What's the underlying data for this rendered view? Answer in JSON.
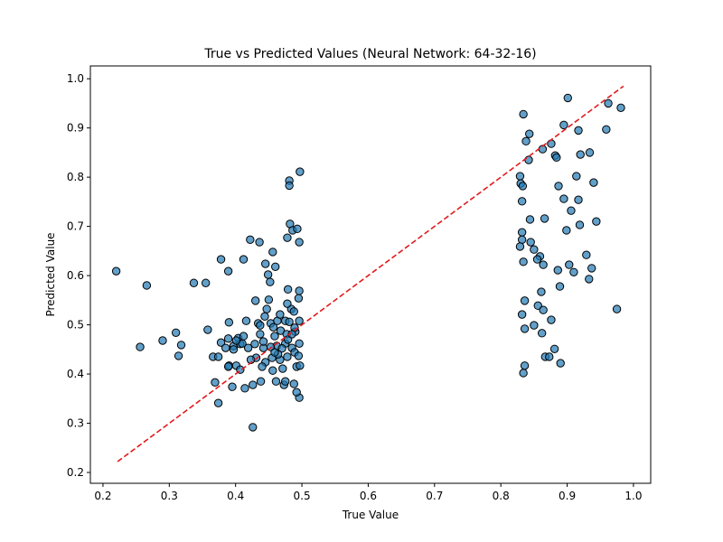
{
  "chart_data": {
    "type": "scatter",
    "title": "True vs Predicted Values (Neural Network: 64-32-16)",
    "xlabel": "True Value",
    "ylabel": "Predicted Value",
    "point_color": "#1f77b4",
    "x": [
      0.22,
      0.256,
      0.266,
      0.29,
      0.31,
      0.314,
      0.318,
      0.337,
      0.355,
      0.358,
      0.366,
      0.369,
      0.374,
      0.378,
      0.378,
      0.389,
      0.39,
      0.39,
      0.395,
      0.397,
      0.401,
      0.404,
      0.407,
      0.412,
      0.412,
      0.414,
      0.416,
      0.419,
      0.422,
      0.426,
      0.426,
      0.43,
      0.431,
      0.436,
      0.434,
      0.437,
      0.438,
      0.442,
      0.445,
      0.447,
      0.449,
      0.45,
      0.452,
      0.453,
      0.455,
      0.456,
      0.456,
      0.459,
      0.46,
      0.461,
      0.462,
      0.463,
      0.467,
      0.468,
      0.471,
      0.473,
      0.475,
      0.477,
      0.478,
      0.479,
      0.481,
      0.481,
      0.482,
      0.484,
      0.485,
      0.486,
      0.488,
      0.489,
      0.49,
      0.492,
      0.493,
      0.495,
      0.496,
      0.497,
      0.496,
      0.496,
      0.492,
      0.496,
      0.496,
      0.497,
      0.488,
      0.475,
      0.457,
      0.444,
      0.437,
      0.467,
      0.478,
      0.475,
      0.481,
      0.489,
      0.495,
      0.445,
      0.44,
      0.423,
      0.453,
      0.47,
      0.464,
      0.459,
      0.478,
      0.479,
      0.485,
      0.442,
      0.429,
      0.407,
      0.41,
      0.401,
      0.397,
      0.385,
      0.389,
      0.374,
      0.389,
      0.834,
      0.843,
      0.838,
      0.901,
      0.962,
      0.981,
      0.895,
      0.917,
      0.959,
      0.876,
      0.863,
      0.882,
      0.884,
      0.92,
      0.934,
      0.842,
      0.829,
      0.914,
      0.83,
      0.833,
      0.887,
      0.94,
      0.832,
      0.895,
      0.917,
      0.906,
      0.844,
      0.866,
      0.919,
      0.944,
      0.832,
      0.899,
      0.832,
      0.845,
      0.829,
      0.85,
      0.859,
      0.855,
      0.834,
      0.929,
      0.864,
      0.903,
      0.937,
      0.886,
      0.91,
      0.933,
      0.889,
      0.861,
      0.836,
      0.856,
      0.864,
      0.975,
      0.832,
      0.876,
      0.85,
      0.836,
      0.862,
      0.881,
      0.867,
      0.873,
      0.836,
      0.89,
      0.834
    ],
    "y": [
      0.609,
      0.455,
      0.58,
      0.468,
      0.484,
      0.437,
      0.459,
      0.585,
      0.585,
      0.49,
      0.435,
      0.383,
      0.341,
      0.633,
      0.464,
      0.609,
      0.505,
      0.417,
      0.374,
      0.457,
      0.417,
      0.473,
      0.409,
      0.633,
      0.477,
      0.371,
      0.508,
      0.453,
      0.673,
      0.378,
      0.292,
      0.549,
      0.433,
      0.668,
      0.503,
      0.481,
      0.385,
      0.453,
      0.624,
      0.532,
      0.602,
      0.551,
      0.587,
      0.503,
      0.433,
      0.648,
      0.407,
      0.477,
      0.618,
      0.385,
      0.457,
      0.508,
      0.429,
      0.488,
      0.411,
      0.378,
      0.462,
      0.481,
      0.677,
      0.572,
      0.793,
      0.783,
      0.705,
      0.532,
      0.453,
      0.692,
      0.527,
      0.444,
      0.486,
      0.415,
      0.695,
      0.554,
      0.668,
      0.811,
      0.508,
      0.352,
      0.363,
      0.569,
      0.462,
      0.417,
      0.38,
      0.385,
      0.495,
      0.517,
      0.499,
      0.521,
      0.543,
      0.508,
      0.506,
      0.494,
      0.437,
      0.424,
      0.415,
      0.429,
      0.455,
      0.452,
      0.44,
      0.444,
      0.435,
      0.47,
      0.481,
      0.466,
      0.461,
      0.461,
      0.462,
      0.468,
      0.45,
      0.453,
      0.472,
      0.435,
      0.415,
      0.928,
      0.888,
      0.873,
      0.961,
      0.95,
      0.941,
      0.906,
      0.895,
      0.897,
      0.868,
      0.857,
      0.844,
      0.84,
      0.846,
      0.85,
      0.835,
      0.802,
      0.802,
      0.787,
      0.782,
      0.782,
      0.789,
      0.751,
      0.756,
      0.754,
      0.732,
      0.714,
      0.716,
      0.703,
      0.71,
      0.688,
      0.692,
      0.673,
      0.668,
      0.659,
      0.653,
      0.639,
      0.633,
      0.628,
      0.642,
      0.622,
      0.622,
      0.615,
      0.611,
      0.607,
      0.593,
      0.578,
      0.567,
      0.549,
      0.539,
      0.53,
      0.532,
      0.521,
      0.51,
      0.499,
      0.492,
      0.483,
      0.451,
      0.435,
      0.435,
      0.417,
      0.422,
      0.402
    ],
    "diagonal": {
      "x": [
        0.222,
        0.985
      ],
      "y": [
        0.222,
        0.985
      ],
      "color": "#e31a1c"
    },
    "xlim": [
      0.181,
      1.026
    ],
    "ylim": [
      0.178,
      1.026
    ],
    "xticks": [
      0.2,
      0.3,
      0.4,
      0.5,
      0.6,
      0.7,
      0.8,
      0.9,
      {
        "value": 1,
        "label": "1.0"
      }
    ],
    "yticks": [
      0.2,
      0.3,
      0.4,
      0.5,
      0.6,
      0.7,
      0.8,
      0.9,
      {
        "value": 1,
        "label": "1.0"
      }
    ]
  }
}
